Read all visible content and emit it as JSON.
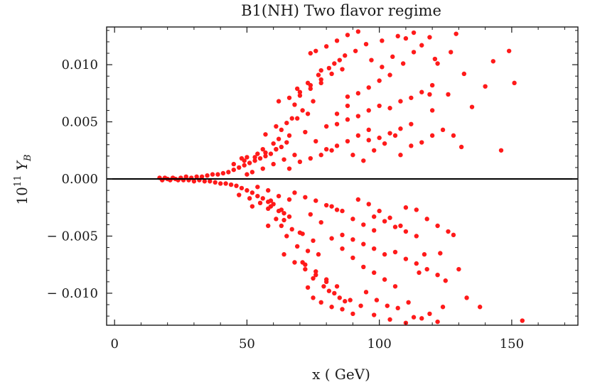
{
  "chart_data": {
    "type": "scatter",
    "title": "B1(NH) Two flavor regime",
    "xlabel": "x ( GeV)",
    "ylabel": {
      "base": "10",
      "exponent": "11",
      "symbol": "Y",
      "subscript": "B"
    },
    "xlim": [
      -3,
      175
    ],
    "ylim": [
      -0.0128,
      0.0133
    ],
    "xticks": [
      0,
      50,
      100,
      150
    ],
    "xtick_labels": [
      "0",
      "50",
      "100",
      "150"
    ],
    "yticks": [
      -0.01,
      -0.005,
      0.0,
      0.005,
      0.01
    ],
    "ytick_labels": [
      "− 0.010",
      "− 0.005",
      "0.000",
      "0.005",
      "0.010"
    ],
    "zero_line": true,
    "grid": false,
    "marker_color": "#ff1a1a",
    "series": [
      {
        "points": [
          [
            17,
            0.0001
          ],
          [
            18,
            -0.0001
          ],
          [
            19,
            0.0001
          ],
          [
            20,
            0.0
          ],
          [
            21,
            -0.0001
          ],
          [
            22,
            0.0001
          ],
          [
            23,
            0.0
          ],
          [
            24,
            -0.0001
          ],
          [
            25,
            0.0001
          ],
          [
            26,
            -0.0001
          ],
          [
            27,
            0.0002
          ],
          [
            28,
            -0.0001
          ],
          [
            29,
            0.0001
          ],
          [
            30,
            -0.0002
          ],
          [
            31,
            0.0002
          ],
          [
            32,
            -0.0001
          ],
          [
            33,
            0.0002
          ],
          [
            34,
            -0.0002
          ],
          [
            35,
            0.0003
          ],
          [
            36,
            -0.0002
          ],
          [
            37,
            0.0004
          ],
          [
            38,
            -0.0003
          ],
          [
            39,
            0.0004
          ],
          [
            40,
            -0.0004
          ],
          [
            41,
            0.0005
          ],
          [
            42,
            -0.0004
          ],
          [
            43,
            0.0006
          ],
          [
            44,
            -0.0005
          ],
          [
            45,
            0.0008
          ],
          [
            46,
            -0.0006
          ],
          [
            47,
            0.001
          ],
          [
            48,
            -0.0008
          ],
          [
            49,
            0.0012
          ],
          [
            50,
            -0.001
          ],
          [
            51,
            0.0014
          ],
          [
            52,
            -0.0012
          ],
          [
            53,
            0.0016
          ],
          [
            54,
            -0.0015
          ],
          [
            55,
            0.0018
          ],
          [
            56,
            -0.0017
          ],
          [
            57,
            0.002
          ],
          [
            58,
            -0.002
          ],
          [
            59,
            0.0022
          ],
          [
            60,
            -0.0022
          ],
          [
            61,
            0.0026
          ],
          [
            62,
            -0.0028
          ],
          [
            63,
            0.0028
          ],
          [
            64,
            -0.003
          ],
          [
            65,
            0.0032
          ],
          [
            66,
            -0.0033
          ],
          [
            48,
            0.0018
          ],
          [
            50,
            0.0019
          ],
          [
            52,
            -0.0024
          ],
          [
            54,
            0.0022
          ],
          [
            56,
            0.0026
          ],
          [
            58,
            -0.0026
          ],
          [
            60,
            0.0031
          ],
          [
            62,
            0.0035
          ],
          [
            64,
            -0.0036
          ],
          [
            66,
            0.0038
          ],
          [
            57,
            0.0039
          ],
          [
            58,
            -0.0041
          ],
          [
            61,
            0.0046
          ],
          [
            63,
            -0.0041
          ],
          [
            65,
            0.0049
          ],
          [
            67,
            -0.0044
          ],
          [
            69,
            0.0053
          ],
          [
            71,
            -0.0048
          ],
          [
            73,
            0.0057
          ],
          [
            75,
            -0.0054
          ],
          [
            59,
            -0.0019
          ],
          [
            61,
            -0.0035
          ],
          [
            63,
            0.0043
          ],
          [
            65,
            -0.005
          ],
          [
            67,
            0.0053
          ],
          [
            69,
            -0.0059
          ],
          [
            71,
            0.006
          ],
          [
            73,
            -0.0063
          ],
          [
            75,
            0.0068
          ],
          [
            77,
            -0.0066
          ],
          [
            68,
            0.0065
          ],
          [
            70,
            0.0073
          ],
          [
            72,
            -0.0075
          ],
          [
            74,
            0.0079
          ],
          [
            76,
            -0.0081
          ],
          [
            78,
            0.0084
          ],
          [
            80,
            -0.0088
          ],
          [
            82,
            0.0092
          ],
          [
            84,
            -0.0094
          ],
          [
            86,
            0.0096
          ],
          [
            70,
            -0.0047
          ],
          [
            72,
            0.0041
          ],
          [
            74,
            -0.0031
          ],
          [
            76,
            0.0033
          ],
          [
            78,
            -0.0038
          ],
          [
            80,
            0.0046
          ],
          [
            82,
            -0.0052
          ],
          [
            84,
            0.0057
          ],
          [
            86,
            -0.0061
          ],
          [
            88,
            0.0064
          ],
          [
            74,
            0.011
          ],
          [
            76,
            0.0112
          ],
          [
            78,
            -0.0108
          ],
          [
            80,
            0.0116
          ],
          [
            82,
            -0.0112
          ],
          [
            84,
            0.0121
          ],
          [
            86,
            -0.0114
          ],
          [
            88,
            0.0126
          ],
          [
            90,
            -0.0118
          ],
          [
            92,
            0.0129
          ],
          [
            73,
            -0.0095
          ],
          [
            75,
            -0.0104
          ],
          [
            78,
            0.0095
          ],
          [
            81,
            -0.0098
          ],
          [
            83,
            0.0101
          ],
          [
            85,
            -0.0104
          ],
          [
            87,
            0.0108
          ],
          [
            89,
            -0.0106
          ],
          [
            91,
            0.0112
          ],
          [
            93,
            -0.0111
          ],
          [
            80,
            0.0026
          ],
          [
            82,
            -0.0024
          ],
          [
            84,
            0.0029
          ],
          [
            86,
            -0.0028
          ],
          [
            88,
            0.0033
          ],
          [
            90,
            -0.0035
          ],
          [
            92,
            0.0038
          ],
          [
            94,
            -0.004
          ],
          [
            96,
            0.0043
          ],
          [
            98,
            -0.0045
          ],
          [
            88,
            0.0072
          ],
          [
            90,
            -0.0069
          ],
          [
            92,
            0.0075
          ],
          [
            94,
            -0.0077
          ],
          [
            96,
            0.008
          ],
          [
            98,
            -0.0082
          ],
          [
            100,
            0.0086
          ],
          [
            102,
            -0.0088
          ],
          [
            104,
            0.0091
          ],
          [
            106,
            -0.0094
          ],
          [
            90,
            0.0021
          ],
          [
            92,
            -0.0018
          ],
          [
            94,
            0.0016
          ],
          [
            96,
            -0.0022
          ],
          [
            98,
            0.0025
          ],
          [
            100,
            -0.0028
          ],
          [
            102,
            0.0031
          ],
          [
            104,
            -0.0034
          ],
          [
            106,
            0.0038
          ],
          [
            108,
            -0.0041
          ],
          [
            95,
            -0.0099
          ],
          [
            97,
            0.0104
          ],
          [
            99,
            -0.0106
          ],
          [
            101,
            0.0098
          ],
          [
            103,
            -0.0111
          ],
          [
            105,
            0.0107
          ],
          [
            107,
            -0.0113
          ],
          [
            109,
            0.0101
          ],
          [
            111,
            -0.0108
          ],
          [
            113,
            0.0111
          ],
          [
            84,
            0.0048
          ],
          [
            86,
            -0.0049
          ],
          [
            88,
            0.0052
          ],
          [
            90,
            -0.0053
          ],
          [
            92,
            0.0055
          ],
          [
            94,
            -0.0057
          ],
          [
            96,
            0.006
          ],
          [
            98,
            -0.0061
          ],
          [
            100,
            0.0064
          ],
          [
            102,
            -0.0066
          ],
          [
            96,
            0.0034
          ],
          [
            98,
            -0.0033
          ],
          [
            100,
            0.0036
          ],
          [
            102,
            -0.0037
          ],
          [
            104,
            0.004
          ],
          [
            106,
            -0.0042
          ],
          [
            108,
            0.0044
          ],
          [
            110,
            -0.0046
          ],
          [
            112,
            0.0048
          ],
          [
            114,
            -0.005
          ],
          [
            104,
            0.0062
          ],
          [
            106,
            -0.0064
          ],
          [
            108,
            0.0068
          ],
          [
            110,
            -0.007
          ],
          [
            112,
            0.0071
          ],
          [
            114,
            -0.0074
          ],
          [
            116,
            0.0076
          ],
          [
            118,
            -0.0079
          ],
          [
            120,
            0.0082
          ],
          [
            122,
            -0.0084
          ],
          [
            108,
            0.0021
          ],
          [
            110,
            -0.0025
          ],
          [
            112,
            0.0029
          ],
          [
            114,
            -0.0027
          ],
          [
            116,
            0.0032
          ],
          [
            118,
            -0.0035
          ],
          [
            120,
            0.0038
          ],
          [
            122,
            -0.0041
          ],
          [
            124,
            0.0043
          ],
          [
            126,
            -0.0046
          ],
          [
            110,
            0.0123
          ],
          [
            113,
            -0.0121
          ],
          [
            116,
            0.0117
          ],
          [
            119,
            -0.0118
          ],
          [
            121,
            0.0105
          ],
          [
            124,
            -0.0112
          ],
          [
            127,
            0.0111
          ],
          [
            128,
            -0.0049
          ],
          [
            131,
            0.0028
          ],
          [
            133,
            -0.0104
          ],
          [
            120,
            0.006
          ],
          [
            123,
            -0.0065
          ],
          [
            126,
            0.0074
          ],
          [
            129,
            0.0127
          ],
          [
            130,
            -0.0079
          ],
          [
            132,
            0.0092
          ],
          [
            135,
            0.0063
          ],
          [
            138,
            -0.0112
          ],
          [
            140,
            0.0081
          ],
          [
            143,
            0.0103
          ],
          [
            146,
            0.0025
          ],
          [
            149,
            0.0112
          ],
          [
            151,
            0.0084
          ],
          [
            154,
            -0.0124
          ],
          [
            128,
            0.0038
          ],
          [
            125,
            -0.0089
          ],
          [
            122,
            0.0101
          ],
          [
            117,
            -0.0066
          ],
          [
            119,
            0.0074
          ],
          [
            115,
            -0.0082
          ],
          [
            50,
            0.0004
          ],
          [
            52,
            0.0006
          ],
          [
            54,
            -0.0007
          ],
          [
            56,
            0.0009
          ],
          [
            58,
            -0.001
          ],
          [
            60,
            0.0013
          ],
          [
            62,
            -0.0015
          ],
          [
            64,
            0.0017
          ],
          [
            66,
            -0.0018
          ],
          [
            68,
            0.0021
          ],
          [
            45,
            0.0013
          ],
          [
            47,
            -0.0014
          ],
          [
            49,
            0.0016
          ],
          [
            51,
            -0.0017
          ],
          [
            53,
            0.0019
          ],
          [
            55,
            -0.0021
          ],
          [
            57,
            0.0023
          ],
          [
            59,
            -0.0024
          ],
          [
            61,
            0.0026
          ],
          [
            63,
            -0.0027
          ],
          [
            66,
            0.0009
          ],
          [
            68,
            -0.0012
          ],
          [
            70,
            0.0015
          ],
          [
            72,
            -0.0016
          ],
          [
            74,
            0.0018
          ],
          [
            76,
            -0.0019
          ],
          [
            78,
            0.0021
          ],
          [
            80,
            -0.0023
          ],
          [
            82,
            0.0025
          ],
          [
            84,
            -0.0027
          ],
          [
            69,
            0.0079
          ],
          [
            71,
            -0.0073
          ],
          [
            73,
            0.0084
          ],
          [
            75,
            -0.0087
          ],
          [
            77,
            0.0091
          ],
          [
            79,
            -0.0094
          ],
          [
            81,
            0.0097
          ],
          [
            83,
            -0.01
          ],
          [
            85,
            0.0104
          ],
          [
            87,
            -0.0107
          ],
          [
            62,
            0.0068
          ],
          [
            64,
            -0.0066
          ],
          [
            66,
            0.0071
          ],
          [
            68,
            -0.0073
          ],
          [
            70,
            0.0076
          ],
          [
            72,
            -0.0079
          ],
          [
            74,
            0.0082
          ],
          [
            76,
            -0.0084
          ],
          [
            78,
            0.0087
          ],
          [
            80,
            -0.009
          ],
          [
            95,
            0.0118
          ],
          [
            98,
            -0.0119
          ],
          [
            101,
            0.0121
          ],
          [
            104,
            -0.0123
          ],
          [
            107,
            0.0125
          ],
          [
            110,
            -0.0126
          ],
          [
            113,
            0.0128
          ],
          [
            116,
            -0.0122
          ],
          [
            119,
            0.0124
          ],
          [
            122,
            -0.0125
          ]
        ]
      }
    ]
  }
}
